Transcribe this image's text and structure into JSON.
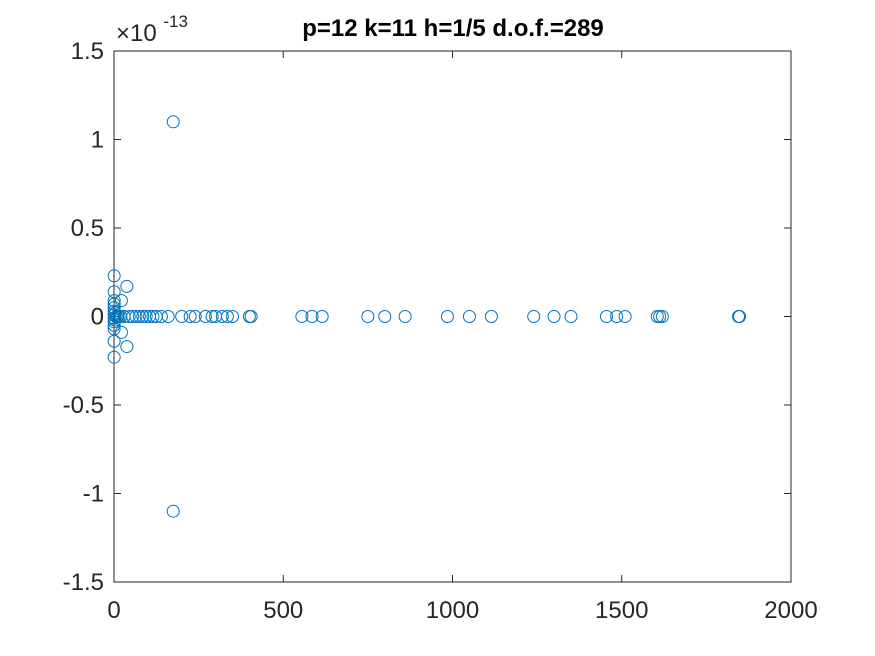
{
  "chart_data": {
    "type": "scatter",
    "title": "p=12 k=11 h=1/5 d.o.f.=289",
    "xlabel": "",
    "ylabel": "",
    "xlim": [
      0,
      2000
    ],
    "ylim": [
      -1.5,
      1.5
    ],
    "y_exponent_base": "×10",
    "y_exponent_power": "-13",
    "xticks": [
      0,
      500,
      1000,
      1500,
      2000
    ],
    "xtick_labels": [
      "0",
      "500",
      "1000",
      "1500",
      "2000"
    ],
    "yticks": [
      -1.5,
      -1,
      -0.5,
      0,
      0.5,
      1,
      1.5
    ],
    "ytick_labels": [
      "-1.5",
      "-1",
      "-0.5",
      "0",
      "0.5",
      "1",
      "1.5"
    ],
    "grid": false,
    "marker": "open-circle",
    "series": [
      {
        "color": "#0072BD",
        "points": [
          [
            0.5,
            0.23
          ],
          [
            0.5,
            0.14
          ],
          [
            0.5,
            0.09
          ],
          [
            0.5,
            0.07
          ],
          [
            0.5,
            0.05
          ],
          [
            0.5,
            0.03
          ],
          [
            0.5,
            0.01
          ],
          [
            0.5,
            -0.01
          ],
          [
            0.5,
            -0.03
          ],
          [
            0.5,
            -0.05
          ],
          [
            0.5,
            -0.07
          ],
          [
            0.5,
            -0.14
          ],
          [
            0.5,
            -0.23
          ],
          [
            3,
            0.02
          ],
          [
            3,
            -0.02
          ],
          [
            6,
            0.0
          ],
          [
            10,
            0.0
          ],
          [
            15,
            0.0
          ],
          [
            20,
            0.0
          ],
          [
            22,
            0.09
          ],
          [
            22,
            -0.09
          ],
          [
            38,
            0.17
          ],
          [
            38,
            -0.17
          ],
          [
            30,
            0.0
          ],
          [
            45,
            0.0
          ],
          [
            55,
            0.0
          ],
          [
            65,
            0.0
          ],
          [
            75,
            0.0
          ],
          [
            85,
            0.0
          ],
          [
            95,
            0.0
          ],
          [
            105,
            0.0
          ],
          [
            115,
            0.0
          ],
          [
            125,
            0.0
          ],
          [
            140,
            0.0
          ],
          [
            160,
            0.0
          ],
          [
            175,
            1.1
          ],
          [
            175,
            -1.1
          ],
          [
            200,
            0.0
          ],
          [
            225,
            0.0
          ],
          [
            240,
            0.0
          ],
          [
            270,
            0.0
          ],
          [
            290,
            0.0
          ],
          [
            300,
            0.0
          ],
          [
            320,
            0.0
          ],
          [
            335,
            0.0
          ],
          [
            350,
            0.0
          ],
          [
            400,
            0.0
          ],
          [
            405,
            0.0
          ],
          [
            555,
            0.0
          ],
          [
            585,
            0.0
          ],
          [
            615,
            0.0
          ],
          [
            750,
            0.0
          ],
          [
            800,
            0.0
          ],
          [
            860,
            0.0
          ],
          [
            985,
            0.0
          ],
          [
            1050,
            0.0
          ],
          [
            1115,
            0.0
          ],
          [
            1240,
            0.0
          ],
          [
            1300,
            0.0
          ],
          [
            1350,
            0.0
          ],
          [
            1455,
            0.0
          ],
          [
            1485,
            0.0
          ],
          [
            1510,
            0.0
          ],
          [
            1605,
            0.0
          ],
          [
            1612,
            0.0
          ],
          [
            1620,
            0.0
          ],
          [
            1845,
            0.0
          ],
          [
            1848,
            0.0
          ]
        ]
      }
    ]
  }
}
